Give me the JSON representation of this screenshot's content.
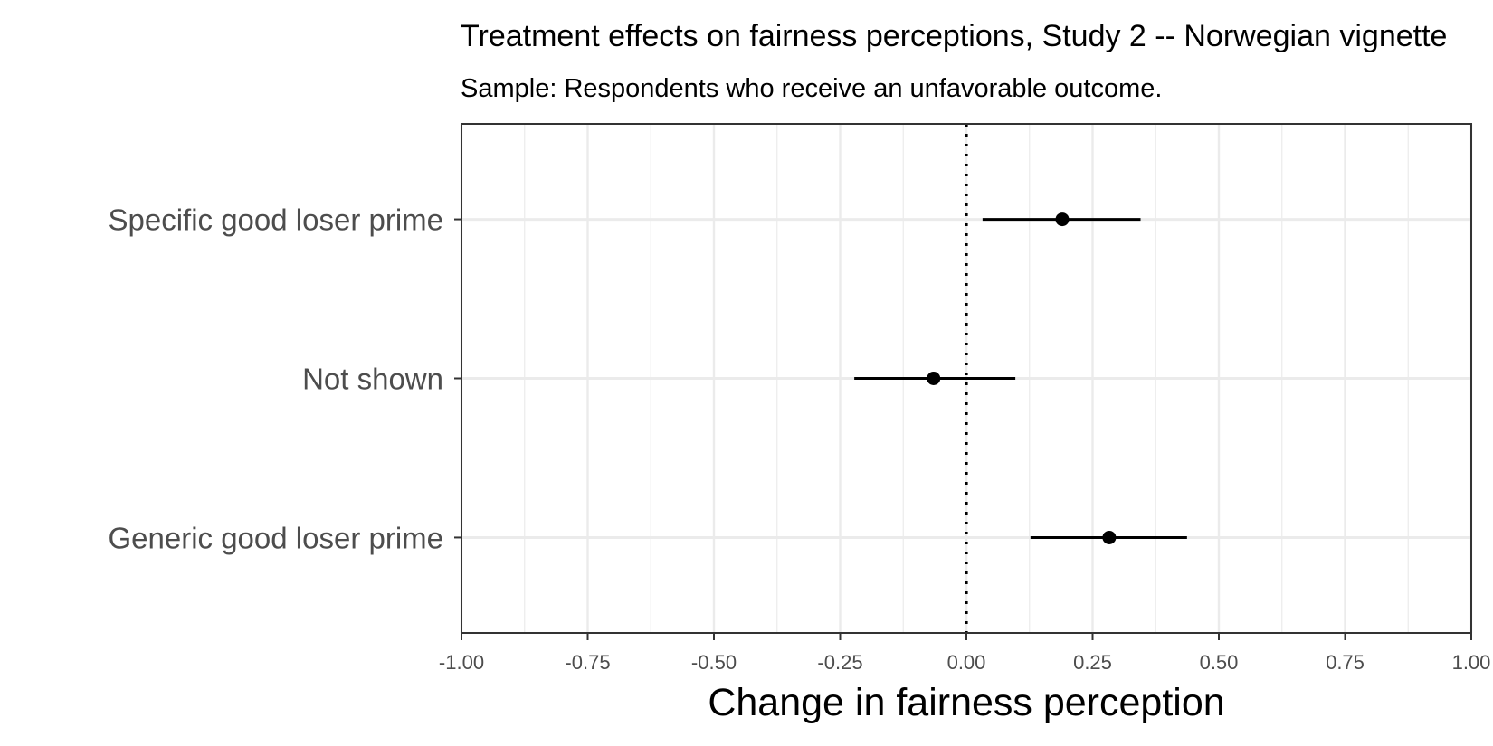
{
  "chart_data": {
    "type": "scatter",
    "title": "Treatment effects on fairness perceptions, Study 2 -- Norwegian vignette",
    "subtitle": "Sample: Respondents who receive an unfavorable outcome.",
    "xlabel": "Change in fairness perception",
    "ylabel": "",
    "xlim": [
      -1.0,
      1.0
    ],
    "x_ticks": [
      -1.0,
      -0.75,
      -0.5,
      -0.25,
      0.0,
      0.25,
      0.5,
      0.75,
      1.0
    ],
    "x_tick_labels": [
      "-1.00",
      "-0.75",
      "-0.50",
      "-0.25",
      "0.00",
      "0.25",
      "0.50",
      "0.75",
      "1.00"
    ],
    "categories": [
      "Specific good loser prime",
      "Not shown",
      "Generic good loser prime"
    ],
    "series": [
      {
        "estimates": [
          0.19,
          -0.065,
          0.283
        ],
        "ci_low": [
          0.032,
          -0.222,
          0.127
        ],
        "ci_high": [
          0.345,
          0.097,
          0.437
        ]
      }
    ],
    "reference_line": 0.0,
    "grid": true,
    "legend": "none",
    "colors": {
      "point": "#000000",
      "grid": "#ebebeb",
      "panel_border": "#333333",
      "axis_text": "#4d4d4d",
      "reference_line": "#000000"
    }
  }
}
